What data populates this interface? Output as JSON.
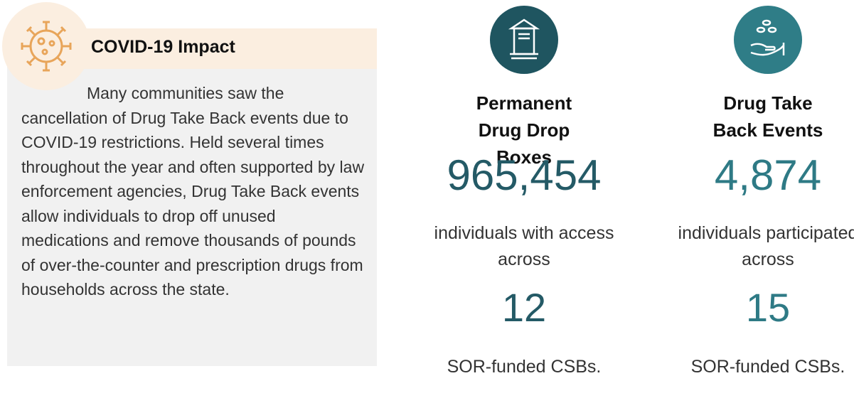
{
  "impact": {
    "title": "COVID-19 Impact",
    "text": "Many communities saw the cancellation of Drug Take Back events due to COVID-19 restrictions. Held several times throughout the year and often supported by law enforcement agencies, Drug Take Back events allow individuals to drop off unused medications and remove thousands of pounds of over-the-counter and prescription drugs from households across the state."
  },
  "stats": [
    {
      "title": "Permanent Drug Drop Boxes",
      "number": "965,454",
      "text": "individuals with access across",
      "count": "12",
      "footer": "SOR-funded CSBs."
    },
    {
      "title": "Drug Take Back Events",
      "number": "4,874",
      "text": "individuals participated across",
      "count": "15",
      "footer": "SOR-funded CSBs."
    }
  ]
}
